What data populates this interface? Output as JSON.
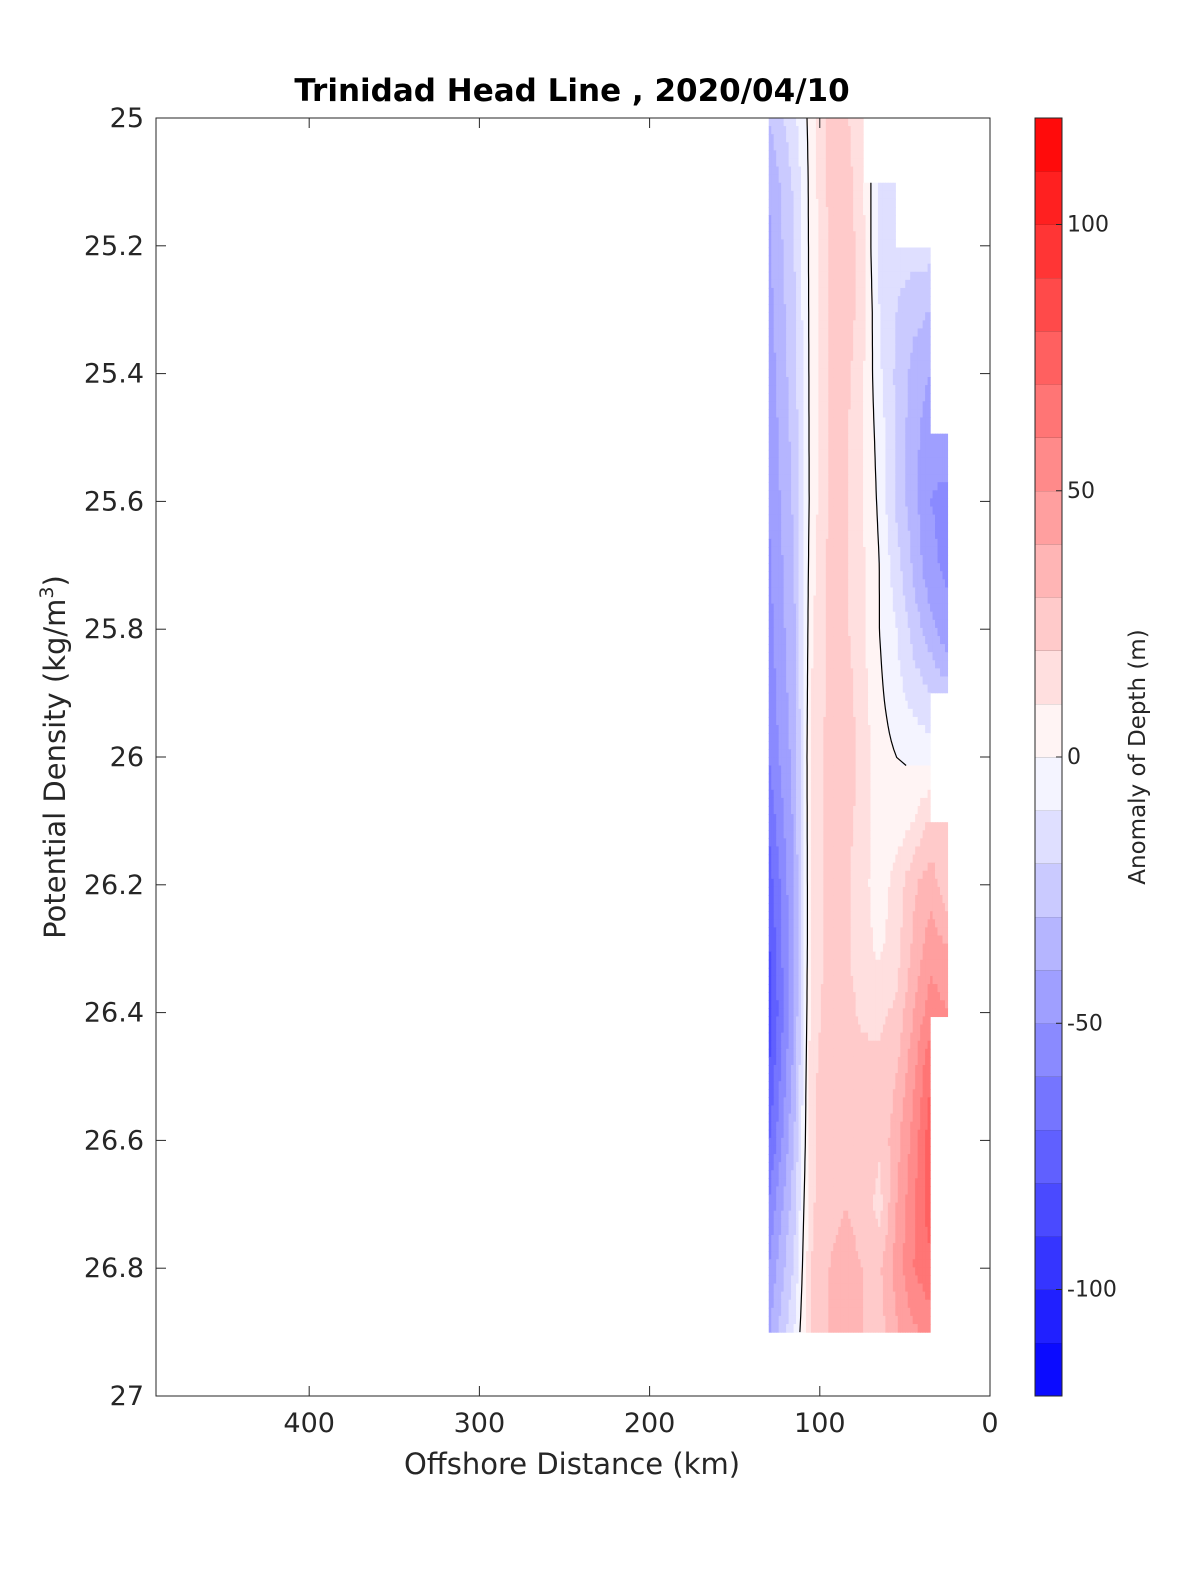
{
  "chart_data": {
    "type": "contour",
    "title": "Trinidad Head Line , 2020/04/10",
    "xlabel": "Offshore Distance (km)",
    "ylabel_main": "Potential Density (kg/m",
    "ylabel_sup": "3",
    "ylabel_end": ")",
    "xlim": [
      490,
      0
    ],
    "ylim": [
      27,
      25
    ],
    "x_reversed": true,
    "y_reversed": true,
    "x_ticks": [
      400,
      300,
      200,
      100,
      0
    ],
    "x_tick_labels": [
      "400",
      "300",
      "200",
      "100",
      "0"
    ],
    "y_ticks": [
      25,
      25.2,
      25.4,
      25.6,
      25.8,
      26,
      26.2,
      26.4,
      26.6,
      26.8,
      27
    ],
    "y_tick_labels": [
      "25",
      "25.2",
      "25.4",
      "25.6",
      "25.8",
      "26",
      "26.2",
      "26.4",
      "26.6",
      "26.8",
      "27"
    ],
    "x": [
      130,
      115,
      105,
      95,
      85,
      75,
      65,
      55,
      45,
      35,
      25
    ],
    "y": [
      25.0,
      25.1,
      25.2,
      25.3,
      25.4,
      25.5,
      25.6,
      25.7,
      25.8,
      25.9,
      26.0,
      26.1,
      26.2,
      26.3,
      26.4,
      26.5,
      26.6,
      26.7,
      26.8,
      26.9
    ],
    "z": [
      [
        -30,
        -12,
        4,
        22,
        22,
        12,
        null,
        null,
        null,
        null,
        null
      ],
      [
        -40,
        -18,
        4,
        22,
        26,
        12,
        -12,
        -14,
        null,
        null,
        null
      ],
      [
        -42,
        -20,
        4,
        20,
        28,
        14,
        -14,
        -16,
        -16,
        -15,
        null
      ],
      [
        -44,
        -22,
        4,
        20,
        28,
        14,
        -10,
        -20,
        -26,
        -30,
        null
      ],
      [
        -46,
        -24,
        4,
        20,
        24,
        12,
        -8,
        -22,
        -34,
        -40,
        null
      ],
      [
        -48,
        -26,
        4,
        20,
        22,
        10,
        -4,
        -22,
        -36,
        -48,
        -46
      ],
      [
        -50,
        -28,
        4,
        20,
        22,
        10,
        -2,
        -22,
        -36,
        -50,
        -52
      ],
      [
        -52,
        -30,
        6,
        22,
        22,
        12,
        0,
        -16,
        -32,
        -48,
        -52
      ],
      [
        -54,
        -32,
        8,
        22,
        22,
        12,
        0,
        -10,
        -24,
        -36,
        -48
      ],
      [
        -56,
        -34,
        10,
        22,
        26,
        14,
        2,
        -6,
        -14,
        -20,
        -26
      ],
      [
        -60,
        -36,
        12,
        24,
        26,
        16,
        4,
        0,
        -2,
        -4,
        null
      ],
      [
        -68,
        -38,
        12,
        24,
        24,
        16,
        4,
        4,
        10,
        22,
        22
      ],
      [
        -76,
        -40,
        12,
        24,
        22,
        14,
        4,
        14,
        28,
        36,
        22
      ],
      [
        -82,
        -40,
        12,
        24,
        22,
        14,
        8,
        16,
        32,
        46,
        40
      ],
      [
        -86,
        -40,
        14,
        24,
        24,
        18,
        18,
        22,
        40,
        56,
        50
      ],
      [
        -80,
        -36,
        16,
        28,
        30,
        24,
        22,
        30,
        48,
        70,
        null
      ],
      [
        -72,
        -30,
        16,
        28,
        28,
        26,
        22,
        36,
        54,
        76,
        null
      ],
      [
        -60,
        -24,
        18,
        28,
        30,
        28,
        16,
        40,
        58,
        76,
        null
      ],
      [
        -50,
        -18,
        20,
        30,
        32,
        30,
        28,
        44,
        60,
        68,
        null
      ],
      [
        -42,
        -10,
        20,
        30,
        34,
        30,
        26,
        38,
        48,
        54,
        null
      ]
    ],
    "contour_levels": [
      -120,
      -110,
      -100,
      -90,
      -80,
      -70,
      -60,
      -50,
      -40,
      -30,
      -20,
      -10,
      0,
      10,
      20,
      30,
      40,
      50,
      60,
      70,
      80,
      90,
      100,
      110,
      120
    ],
    "zero_contour": true,
    "colorbar": {
      "range": [
        -120,
        120
      ],
      "ticks": [
        100,
        50,
        0,
        -50,
        -100
      ],
      "tick_labels": [
        "100",
        "50",
        "0",
        "-50",
        "-100"
      ],
      "label": "Anomaly of Depth (m)",
      "colormap": "blue-white-red",
      "low_color": "#0000ff",
      "mid_color": "#ffffff",
      "high_color": "#ff0000"
    },
    "grid": false
  }
}
